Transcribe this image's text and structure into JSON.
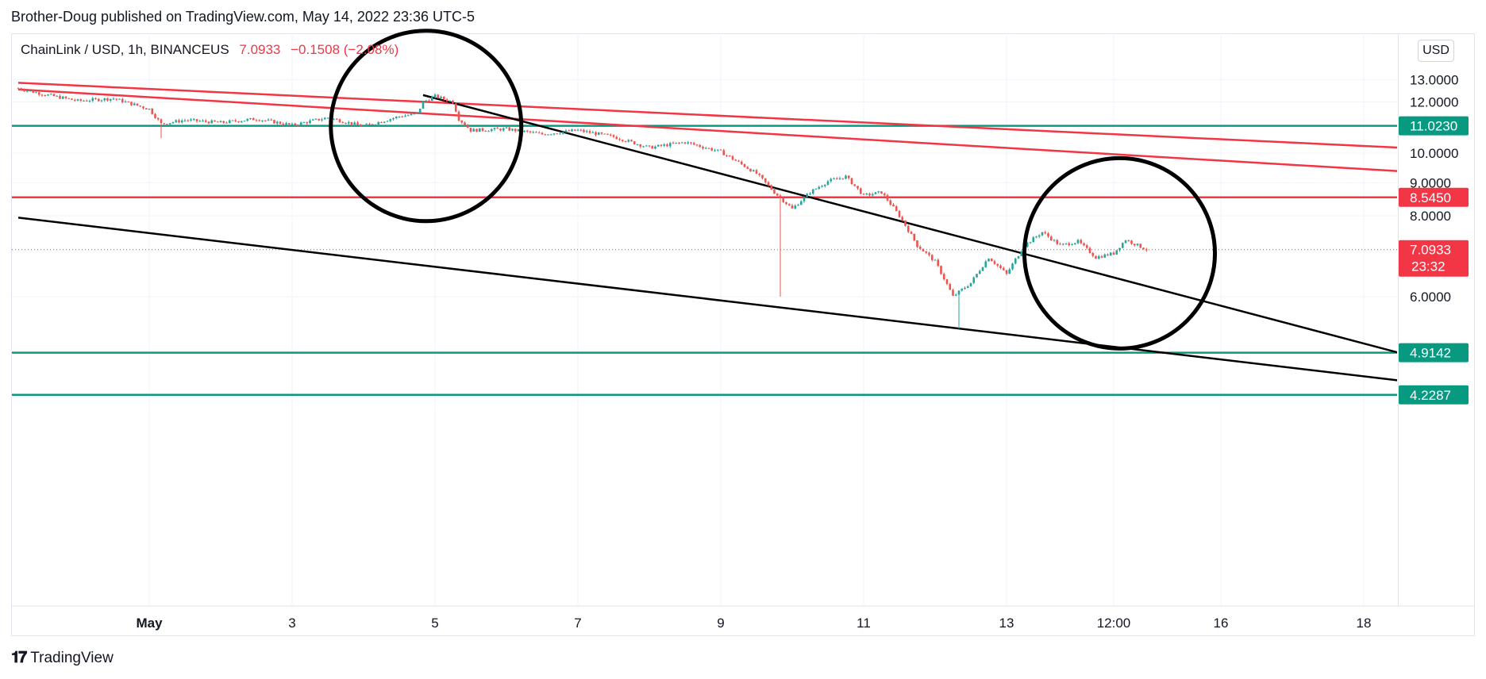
{
  "header": {
    "publish_line": "Brother-Doug published on TradingView.com, May 14, 2022 23:36 UTC-5"
  },
  "legend": {
    "symbol": "ChainLink / USD, 1h, BINANCEUS",
    "price": "7.0933",
    "change": "−0.1508 (−2.08%)"
  },
  "currency_button": "USD",
  "footer": {
    "brand": "TradingView"
  },
  "colors": {
    "up": "#26a69a",
    "down": "#ef5350",
    "support": "#089981",
    "resistance": "#f23645",
    "trendline": "#000000"
  },
  "chart_data": {
    "type": "candlestick",
    "symbol": "ChainLink / USD",
    "interval": "1h",
    "exchange": "BINANCEUS",
    "y_scale": "log",
    "ylim": [
      4.2287,
      13.0
    ],
    "y_ticks": [
      "13.0000",
      "12.0000",
      "10.0000",
      "9.0000",
      "8.0000",
      "6.0000"
    ],
    "x_ticks": [
      "May",
      "3",
      "5",
      "7",
      "9",
      "11",
      "13",
      "12:00",
      "16",
      "18"
    ],
    "x_tick_dates": [
      "2022-05-01",
      "2022-05-03",
      "2022-05-05",
      "2022-05-07",
      "2022-05-09",
      "2022-05-11",
      "2022-05-13",
      "2022-05-14 12:00",
      "2022-05-16",
      "2022-05-18"
    ],
    "grid": true,
    "price_path": [
      [
        "2022-04-29 04:00",
        12.6
      ],
      [
        "2022-04-29 12:00",
        12.35
      ],
      [
        "2022-04-30 00:00",
        12.05
      ],
      [
        "2022-04-30 12:00",
        12.15
      ],
      [
        "2022-05-01 00:00",
        11.7
      ],
      [
        "2022-05-01 04:00",
        11.1
      ],
      [
        "2022-05-01 12:00",
        11.25
      ],
      [
        "2022-05-02 00:00",
        11.15
      ],
      [
        "2022-05-02 12:00",
        11.3
      ],
      [
        "2022-05-03 00:00",
        11.05
      ],
      [
        "2022-05-03 12:00",
        11.35
      ],
      [
        "2022-05-04 00:00",
        11.0
      ],
      [
        "2022-05-04 12:00",
        11.4
      ],
      [
        "2022-05-04 18:00",
        11.5
      ],
      [
        "2022-05-04 20:00",
        12.0
      ],
      [
        "2022-05-05 00:00",
        12.25
      ],
      [
        "2022-05-05 06:00",
        12.0
      ],
      [
        "2022-05-05 08:00",
        11.3
      ],
      [
        "2022-05-05 12:00",
        10.85
      ],
      [
        "2022-05-06 00:00",
        10.9
      ],
      [
        "2022-05-06 12:00",
        10.7
      ],
      [
        "2022-05-07 00:00",
        10.85
      ],
      [
        "2022-05-07 12:00",
        10.6
      ],
      [
        "2022-05-08 00:00",
        10.2
      ],
      [
        "2022-05-08 12:00",
        10.4
      ],
      [
        "2022-05-09 00:00",
        10.05
      ],
      [
        "2022-05-09 12:00",
        9.3
      ],
      [
        "2022-05-09 18:00",
        8.7
      ],
      [
        "2022-05-10 00:00",
        8.2
      ],
      [
        "2022-05-10 06:00",
        8.7
      ],
      [
        "2022-05-10 12:00",
        9.05
      ],
      [
        "2022-05-10 18:00",
        9.2
      ],
      [
        "2022-05-11 00:00",
        8.6
      ],
      [
        "2022-05-11 06:00",
        8.7
      ],
      [
        "2022-05-11 12:00",
        8.0
      ],
      [
        "2022-05-11 18:00",
        7.2
      ],
      [
        "2022-05-12 00:00",
        6.8
      ],
      [
        "2022-05-12 06:00",
        6.0
      ],
      [
        "2022-05-12 12:00",
        6.3
      ],
      [
        "2022-05-12 18:00",
        6.9
      ],
      [
        "2022-05-13 00:00",
        6.5
      ],
      [
        "2022-05-13 06:00",
        7.2
      ],
      [
        "2022-05-13 12:00",
        7.55
      ],
      [
        "2022-05-13 18:00",
        7.2
      ],
      [
        "2022-05-14 00:00",
        7.3
      ],
      [
        "2022-05-14 06:00",
        6.9
      ],
      [
        "2022-05-14 12:00",
        7.0
      ],
      [
        "2022-05-14 16:00",
        7.35
      ],
      [
        "2022-05-14 23:00",
        7.0933
      ]
    ],
    "spike_lows": [
      [
        "2022-05-01 04:00",
        10.55
      ],
      [
        "2022-05-09 20:00",
        6.0
      ],
      [
        "2022-05-12 08:00",
        5.35
      ]
    ],
    "horizontal_levels": [
      {
        "value": 11.023,
        "label": "11.0230",
        "color": "#089981"
      },
      {
        "value": 8.545,
        "label": "8.5450",
        "color": "#f23645"
      },
      {
        "value": 4.9142,
        "label": "4.9142",
        "color": "#089981"
      },
      {
        "value": 4.2287,
        "label": "4.2287",
        "color": "#089981"
      }
    ],
    "current_price": {
      "value": 7.0933,
      "label": "7.0933",
      "countdown": "23:32",
      "color": "#f23645"
    },
    "trendlines": [
      {
        "color": "#f23645",
        "from": [
          "2022-04-29 04:00",
          12.85
        ],
        "to": [
          "2022-05-18 12:00",
          10.2
        ]
      },
      {
        "color": "#f23645",
        "from": [
          "2022-04-29 04:00",
          12.55
        ],
        "to": [
          "2022-05-18 12:00",
          9.38
        ]
      },
      {
        "color": "#000000",
        "from": [
          "2022-05-04 20:00",
          12.3
        ],
        "to": [
          "2022-05-18 12:00",
          4.91
        ]
      },
      {
        "color": "#000000",
        "from": [
          "2022-04-29 04:00",
          7.95
        ],
        "to": [
          "2022-05-18 12:00",
          4.45
        ]
      }
    ],
    "circles": [
      {
        "center": [
          "2022-05-04 21:00",
          11.02
        ],
        "color": "#000000"
      },
      {
        "center": [
          "2022-05-14 14:00",
          7.0
        ],
        "color": "#000000"
      }
    ]
  }
}
